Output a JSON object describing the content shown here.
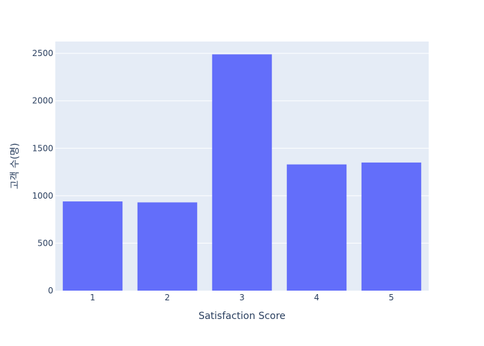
{
  "chart_data": {
    "type": "bar",
    "categories": [
      "1",
      "2",
      "3",
      "4",
      "5"
    ],
    "values": [
      940,
      930,
      2490,
      1330,
      1350
    ],
    "xlabel": "Satisfaction Score",
    "ylabel": "고객 수(명)",
    "ylim": [
      0,
      2625
    ],
    "yticks": [
      0,
      500,
      1000,
      1500,
      2000,
      2500
    ],
    "ytick_labels": [
      "0",
      "500",
      "1000",
      "1500",
      "2000",
      "2500"
    ],
    "grid": true,
    "colors": {
      "bar": "#636efa",
      "plot_bg": "#e5ecf6",
      "grid": "#ffffff",
      "text": "#2a3f5f"
    }
  }
}
